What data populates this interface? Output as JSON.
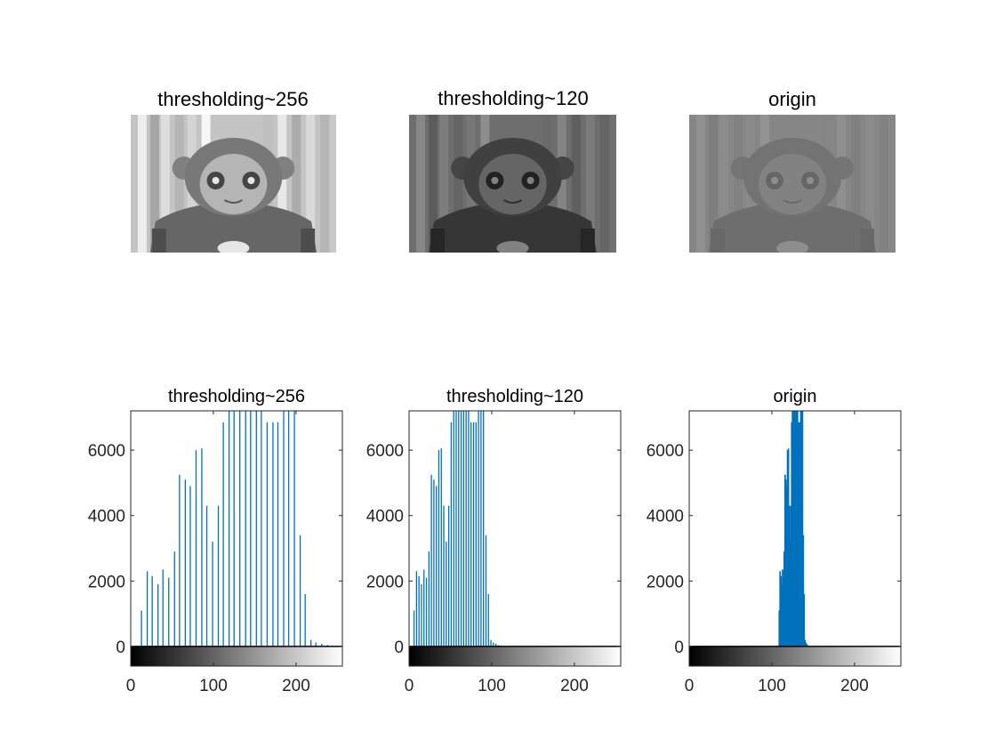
{
  "figure": {
    "images": [
      {
        "title": "thresholding~256",
        "brightness": 0.55,
        "contrast": 1.0
      },
      {
        "title": "thresholding~120",
        "brightness": 0.3,
        "contrast": 0.6
      },
      {
        "title": "origin",
        "brightness": 0.47,
        "contrast": 0.25
      }
    ]
  },
  "chart_data": [
    {
      "type": "bar",
      "title": "thresholding~256",
      "xlim": [
        0,
        256
      ],
      "ylim": [
        -600,
        7200
      ],
      "xticks": [
        0,
        100,
        200
      ],
      "yticks": [
        0,
        2000,
        4000,
        6000
      ],
      "bar_color": "#0072BD",
      "colorbar": "gray",
      "x": [
        13,
        20,
        26,
        33,
        39,
        46,
        53,
        59,
        66,
        72,
        79,
        86,
        92,
        99,
        106,
        112,
        119,
        125,
        132,
        139,
        145,
        152,
        158,
        165,
        172,
        178,
        185,
        191,
        198,
        205,
        211,
        218,
        224,
        231,
        238,
        244,
        250
      ],
      "values": [
        1100,
        2300,
        2150,
        1900,
        2350,
        2100,
        2900,
        5250,
        5100,
        4900,
        6000,
        6050,
        4300,
        3200,
        4300,
        6850,
        7200,
        7200,
        7200,
        7200,
        7200,
        7200,
        7200,
        6850,
        6850,
        6850,
        7200,
        7200,
        7200,
        3400,
        1600,
        200,
        120,
        80,
        40,
        20,
        10
      ]
    },
    {
      "type": "bar",
      "title": "thresholding~120",
      "xlim": [
        0,
        256
      ],
      "ylim": [
        -600,
        7200
      ],
      "xticks": [
        0,
        100,
        200
      ],
      "yticks": [
        0,
        2000,
        4000,
        6000
      ],
      "bar_color": "#0072BD",
      "colorbar": "gray",
      "x": [
        6,
        9,
        12,
        15,
        18,
        21,
        24,
        27,
        30,
        33,
        36,
        39,
        42,
        45,
        48,
        51,
        54,
        57,
        60,
        63,
        66,
        69,
        72,
        75,
        78,
        81,
        84,
        87,
        90,
        93,
        96,
        99,
        102,
        105,
        108,
        111
      ],
      "values": [
        1100,
        2300,
        2150,
        1900,
        2350,
        2100,
        2900,
        5250,
        5100,
        4900,
        6000,
        6050,
        4300,
        3200,
        4300,
        6850,
        7200,
        7200,
        7200,
        7200,
        7200,
        7200,
        7200,
        6850,
        6850,
        6850,
        7200,
        7200,
        7200,
        3400,
        1600,
        200,
        120,
        80,
        40,
        20
      ]
    },
    {
      "type": "bar",
      "title": "origin",
      "xlim": [
        0,
        256
      ],
      "ylim": [
        -600,
        7200
      ],
      "xticks": [
        0,
        100,
        200
      ],
      "yticks": [
        0,
        2000,
        4000,
        6000
      ],
      "bar_color": "#0072BD",
      "colorbar": "gray",
      "x": [
        109,
        110,
        111,
        112,
        113,
        114,
        115,
        116,
        117,
        118,
        119,
        120,
        121,
        122,
        123,
        124,
        125,
        126,
        127,
        128,
        129,
        130,
        131,
        132,
        133,
        134,
        135,
        136,
        137,
        138,
        139,
        140,
        141,
        142,
        143,
        144,
        145
      ],
      "values": [
        1100,
        2300,
        2150,
        1900,
        2350,
        2100,
        2900,
        5250,
        5100,
        4900,
        6000,
        6050,
        4300,
        3200,
        4300,
        6850,
        7200,
        7200,
        7200,
        7200,
        7200,
        7200,
        7200,
        6850,
        6850,
        6850,
        7200,
        7200,
        7200,
        3400,
        1600,
        200,
        120,
        80,
        40,
        20,
        10
      ]
    }
  ]
}
